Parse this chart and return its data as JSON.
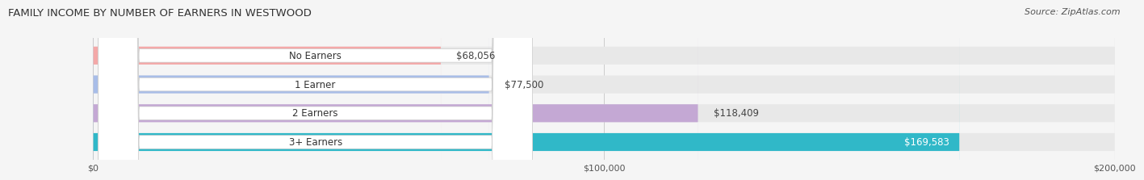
{
  "title": "FAMILY INCOME BY NUMBER OF EARNERS IN WESTWOOD",
  "source": "Source: ZipAtlas.com",
  "categories": [
    "No Earners",
    "1 Earner",
    "2 Earners",
    "3+ Earners"
  ],
  "values": [
    68056,
    77500,
    118409,
    169583
  ],
  "bar_colors": [
    "#f4a8a8",
    "#a8bde8",
    "#c4a8d4",
    "#30b8c8"
  ],
  "label_colors": [
    "#f4a8a8",
    "#a8bde8",
    "#c4a8d4",
    "#30b8c8"
  ],
  "value_label_colors": [
    "#555555",
    "#555555",
    "#555555",
    "#ffffff"
  ],
  "xmax": 200000,
  "x_ticks": [
    0,
    100000,
    200000
  ],
  "x_tick_labels": [
    "$0",
    "$100,000",
    "$200,000"
  ],
  "bg_color": "#f5f5f5",
  "bar_bg_color": "#e8e8e8",
  "label_box_color": "#ffffff"
}
